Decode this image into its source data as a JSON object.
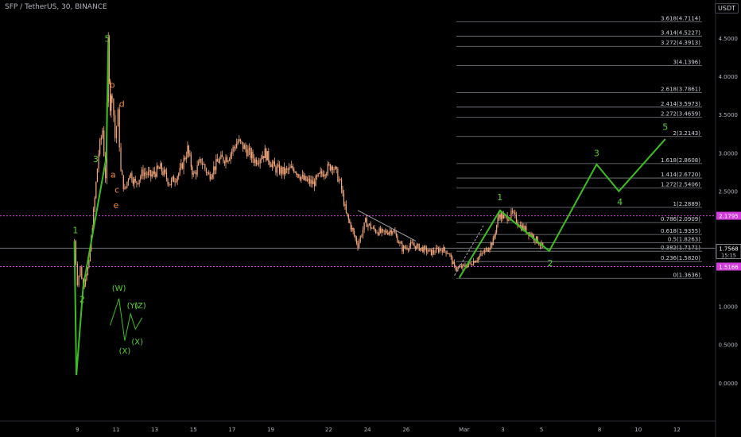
{
  "header": {
    "title": "SFP / TetherUS, 30, BINANCE"
  },
  "currency_badge": "USDT",
  "colors": {
    "background": "#000000",
    "candles": "#f6a87c",
    "wave_green": "#3bbf1e",
    "wave_label_green": "#56d12f",
    "wave_label_orange": "#f0873a",
    "fib_line": "#7c7f88",
    "magenta_line": "#d13cdb",
    "price_tag_magenta": "#d13cdb",
    "price_tag_white": "#ffffff"
  },
  "chart_data": {
    "type": "candlestick",
    "y_axis": {
      "ticks": [
        {
          "v": 4.5,
          "label": "4.5000"
        },
        {
          "v": 4.0,
          "label": "4.0000"
        },
        {
          "v": 3.5,
          "label": "3.5000"
        },
        {
          "v": 3.0,
          "label": "3.0000"
        },
        {
          "v": 2.5,
          "label": "2.5000"
        },
        {
          "v": 1.0,
          "label": "1.0000"
        },
        {
          "v": 0.5,
          "label": "0.5000"
        },
        {
          "v": 0.0,
          "label": "0.0000"
        }
      ],
      "range": [
        -0.5,
        4.85
      ]
    },
    "x_axis": {
      "ticks": [
        {
          "t": 9,
          "label": "9"
        },
        {
          "t": 11,
          "label": "11"
        },
        {
          "t": 13,
          "label": "13"
        },
        {
          "t": 15,
          "label": "15"
        },
        {
          "t": 17,
          "label": "17"
        },
        {
          "t": 19,
          "label": "19"
        },
        {
          "t": 22,
          "label": "22"
        },
        {
          "t": 24,
          "label": "24"
        },
        {
          "t": 26,
          "label": "26"
        },
        {
          "t": 29,
          "label": "Mar"
        },
        {
          "t": 31,
          "label": "3"
        },
        {
          "t": 33,
          "label": "5"
        },
        {
          "t": 36,
          "label": "8"
        },
        {
          "t": 38,
          "label": "10"
        },
        {
          "t": 40,
          "label": "12"
        }
      ],
      "range": [
        5.0,
        42.0
      ]
    },
    "price_path": [
      [
        8.85,
        1.85
      ],
      [
        9.0,
        1.3
      ],
      [
        9.15,
        1.5
      ],
      [
        9.3,
        1.25
      ],
      [
        9.6,
        1.55
      ],
      [
        9.9,
        2.4
      ],
      [
        10.1,
        3.0
      ],
      [
        10.3,
        3.3
      ],
      [
        10.45,
        2.7
      ],
      [
        10.6,
        4.45
      ],
      [
        10.7,
        3.6
      ],
      [
        10.8,
        3.8
      ],
      [
        10.95,
        3.2
      ],
      [
        11.1,
        3.5
      ],
      [
        11.25,
        2.75
      ],
      [
        11.45,
        2.5
      ],
      [
        11.7,
        2.75
      ],
      [
        12.0,
        2.6
      ],
      [
        12.4,
        2.75
      ],
      [
        12.8,
        2.7
      ],
      [
        13.3,
        2.8
      ],
      [
        13.8,
        2.6
      ],
      [
        14.3,
        2.75
      ],
      [
        14.7,
        3.05
      ],
      [
        15.0,
        2.7
      ],
      [
        15.4,
        2.9
      ],
      [
        15.8,
        2.7
      ],
      [
        16.3,
        2.9
      ],
      [
        16.8,
        2.95
      ],
      [
        17.3,
        3.15
      ],
      [
        17.7,
        3.05
      ],
      [
        18.2,
        2.9
      ],
      [
        18.7,
        3.0
      ],
      [
        19.2,
        2.8
      ],
      [
        19.7,
        2.75
      ],
      [
        20.2,
        2.8
      ],
      [
        20.7,
        2.65
      ],
      [
        21.2,
        2.6
      ],
      [
        21.7,
        2.75
      ],
      [
        22.2,
        2.85
      ],
      [
        22.6,
        2.6
      ],
      [
        22.9,
        2.2
      ],
      [
        23.2,
        2.0
      ],
      [
        23.5,
        1.8
      ],
      [
        23.9,
        2.1
      ],
      [
        24.3,
        2.0
      ],
      [
        24.8,
        1.95
      ],
      [
        25.3,
        2.0
      ],
      [
        25.8,
        1.75
      ],
      [
        26.3,
        1.8
      ],
      [
        26.8,
        1.75
      ],
      [
        27.3,
        1.7
      ],
      [
        27.8,
        1.75
      ],
      [
        28.2,
        1.7
      ],
      [
        28.5,
        1.5
      ],
      [
        28.8,
        1.5
      ],
      [
        29.3,
        1.55
      ],
      [
        29.8,
        1.65
      ],
      [
        30.2,
        1.75
      ],
      [
        30.5,
        1.85
      ],
      [
        30.8,
        2.2
      ],
      [
        31.1,
        2.15
      ],
      [
        31.5,
        2.2
      ],
      [
        31.9,
        2.05
      ],
      [
        32.4,
        1.95
      ],
      [
        32.8,
        1.85
      ],
      [
        33.2,
        1.72
      ]
    ],
    "wave_pattern": [
      [
        8.85,
        1.85
      ],
      [
        8.95,
        0.1
      ],
      [
        9.3,
        1.25
      ],
      [
        10.5,
        2.95
      ],
      [
        10.6,
        4.45
      ]
    ],
    "wave_labels_green": [
      {
        "label": "1",
        "t": 8.9,
        "v": 1.95
      },
      {
        "label": "2",
        "t": 9.25,
        "v": 1.05
      },
      {
        "label": "3",
        "t": 9.95,
        "v": 2.88
      },
      {
        "label": "5",
        "t": 10.55,
        "v": 4.45
      }
    ],
    "wave_labels_orange": [
      {
        "label": "b",
        "t": 10.8,
        "v": 3.85
      },
      {
        "label": "d",
        "t": 11.3,
        "v": 3.6
      },
      {
        "label": "a",
        "t": 10.85,
        "v": 2.68
      },
      {
        "label": "c",
        "t": 11.05,
        "v": 2.48
      },
      {
        "label": "e",
        "t": 11.0,
        "v": 2.28
      }
    ],
    "wxyz_sketch": [
      [
        10.7,
        0.75
      ],
      [
        11.15,
        1.1
      ],
      [
        11.45,
        0.55
      ],
      [
        11.75,
        0.9
      ],
      [
        12.0,
        0.7
      ],
      [
        12.35,
        0.85
      ]
    ],
    "wxyz_labels": [
      {
        "label": "(W)",
        "t": 11.15,
        "v": 1.2
      },
      {
        "label": "(Y)",
        "t": 11.85,
        "v": 0.97
      },
      {
        "label": "(Z)",
        "t": 12.25,
        "v": 0.97
      },
      {
        "label": "(X)",
        "t": 11.45,
        "v": 0.38
      },
      {
        "label": "(X)",
        "t": 12.1,
        "v": 0.5
      }
    ],
    "trend_lines": [
      {
        "points": [
          [
            23.5,
            2.25
          ],
          [
            26.5,
            1.85
          ]
        ],
        "style": "solid"
      },
      {
        "points": [
          [
            28.5,
            1.4
          ],
          [
            30.0,
            2.05
          ]
        ],
        "style": "dashed"
      }
    ],
    "projection_path": [
      [
        28.75,
        1.37
      ],
      [
        30.85,
        2.25
      ],
      [
        33.4,
        1.72
      ],
      [
        35.85,
        2.85
      ],
      [
        37.0,
        2.5
      ],
      [
        39.4,
        3.18
      ]
    ],
    "projection_labels": [
      {
        "label": "1",
        "t": 30.85,
        "v": 2.38
      },
      {
        "label": "2",
        "t": 33.45,
        "v": 1.52
      },
      {
        "label": "3",
        "t": 35.85,
        "v": 2.96
      },
      {
        "label": "4",
        "t": 37.05,
        "v": 2.32
      },
      {
        "label": "5",
        "t": 39.4,
        "v": 3.3
      }
    ],
    "fib_levels": [
      {
        "v": 4.7114,
        "label": "3.618(4.7114)"
      },
      {
        "v": 4.5227,
        "label": "3.414(4.5227)"
      },
      {
        "v": 4.3913,
        "label": "3.272(4.3913)"
      },
      {
        "v": 4.1396,
        "label": "3(4.1396)"
      },
      {
        "v": 3.7861,
        "label": "2.618(3.7861)"
      },
      {
        "v": 3.5973,
        "label": "2.414(3.5973)"
      },
      {
        "v": 3.4659,
        "label": "2.272(3.4659)"
      },
      {
        "v": 3.2143,
        "label": "2(3.2143)"
      },
      {
        "v": 2.8608,
        "label": "1.618(2.8608)"
      },
      {
        "v": 2.672,
        "label": "1.414(2.6720)"
      },
      {
        "v": 2.5406,
        "label": "1.272(2.5406)"
      },
      {
        "v": 2.2889,
        "label": "1(2.2889)"
      },
      {
        "v": 2.0909,
        "label": "0.786(2.0909)"
      },
      {
        "v": 1.9355,
        "label": "0.618(1.9355)"
      },
      {
        "v": 1.8263,
        "label": "0.5(1.8263)"
      },
      {
        "v": 1.7171,
        "label": "0.382(1.7171)"
      },
      {
        "v": 1.582,
        "label": "0.236(1.5820)"
      },
      {
        "v": 1.3636,
        "label": "0(1.3636)"
      }
    ],
    "fib_range_t": [
      28.6,
      41.3
    ],
    "horizontal_lines": [
      {
        "v": 2.1795,
        "color": "magenta",
        "style": "dotted"
      },
      {
        "v": 1.5166,
        "color": "magenta",
        "style": "dotted"
      },
      {
        "v": 1.7568,
        "color": "gray",
        "style": "solid"
      }
    ],
    "price_tags": [
      {
        "label": "2.1795",
        "v": 2.1795,
        "style": "magenta"
      },
      {
        "label": "1.7568",
        "v": 1.7568,
        "style": "white",
        "sub": "15:15"
      },
      {
        "label": "1.5166",
        "v": 1.5166,
        "style": "magenta"
      }
    ]
  }
}
